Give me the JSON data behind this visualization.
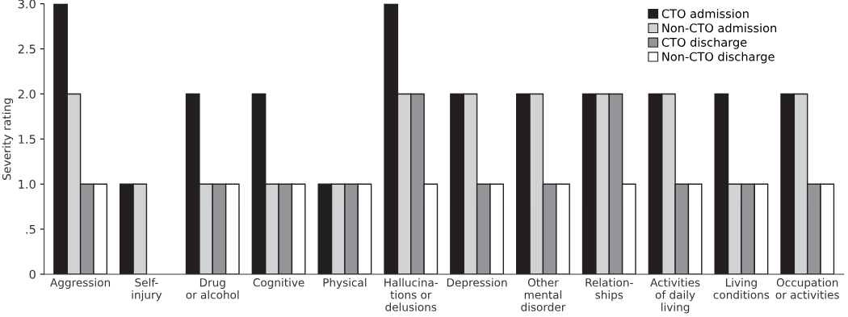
{
  "chart_data": {
    "type": "bar",
    "ylabel": "Severity rating",
    "categories": [
      "Aggression",
      "Self-\ninjury",
      "Drug\nor alcohol",
      "Cognitive",
      "Physical",
      "Hallucina-\ntions or\ndelusions",
      "Depression",
      "Other\nmental\ndisorder",
      "Relation-\nships",
      "Activities\nof daily\nliving",
      "Living\nconditions",
      "Occupation\nor activities"
    ],
    "series": [
      {
        "name": "CTO admission",
        "color": "#231f20",
        "values": [
          3,
          1,
          2,
          2,
          1,
          3,
          2,
          2,
          2,
          2,
          2,
          2
        ]
      },
      {
        "name": "Non-CTO admission",
        "color": "#d1d2d4",
        "values": [
          2,
          1,
          1,
          1,
          1,
          2,
          2,
          2,
          2,
          2,
          1,
          2
        ]
      },
      {
        "name": "CTO discharge",
        "color": "#939598",
        "values": [
          1,
          0,
          1,
          1,
          1,
          2,
          1,
          1,
          2,
          1,
          1,
          1
        ]
      },
      {
        "name": "Non-CTO discharge",
        "color": "#ffffff",
        "values": [
          1,
          0,
          1,
          1,
          1,
          1,
          1,
          1,
          1,
          1,
          1,
          1
        ]
      }
    ],
    "ylim": [
      0,
      3.0
    ],
    "yticks": [
      0,
      {
        "value": 0.5,
        "label": ".5"
      },
      {
        "value": 1.0,
        "label": "1.0"
      },
      {
        "value": 1.5,
        "label": "1.5"
      },
      {
        "value": 2.0,
        "label": "2.0"
      },
      {
        "value": 2.5,
        "label": "2.5"
      },
      {
        "value": 3.0,
        "label": "3.0"
      }
    ],
    "grid": false,
    "legend": "top right"
  }
}
